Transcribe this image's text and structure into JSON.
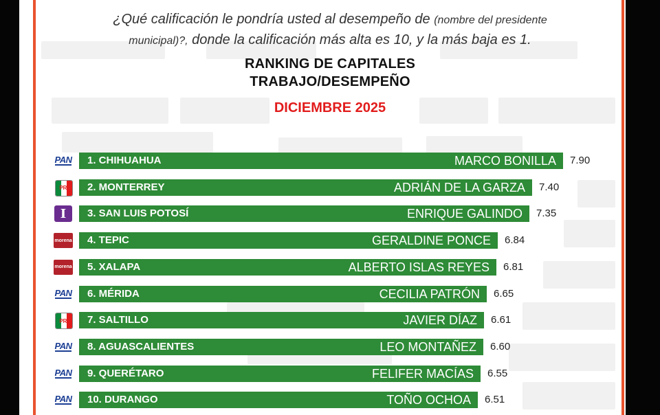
{
  "question": {
    "part1": "¿Qué calificación le pondría usted al desempeño de",
    "small1": "(nombre del presidente",
    "small2": "municipal)?,",
    "part2": "donde la calificación más alta es 10, y la más baja es 1."
  },
  "chart_data": {
    "type": "bar",
    "orientation": "horizontal",
    "title": "RANKING DE CAPITALES",
    "subtitle": "TRABAJO/DESEMPEÑO",
    "period": "DICIEMBRE 2025",
    "bar_color": "#2e8b37",
    "period_color": "#e21c1c",
    "xlim": [
      0,
      10
    ],
    "rows": [
      {
        "rank_city": "1. CHIHUAHUA",
        "mayor": "MARCO BONILLA",
        "value": 7.9,
        "value_label": "7.90",
        "party": "PAN"
      },
      {
        "rank_city": "2. MONTERREY",
        "mayor": "ADRIÁN DE LA GARZA",
        "value": 7.4,
        "value_label": "7.40",
        "party": "PRI"
      },
      {
        "rank_city": "3. SAN LUIS POTOSÍ",
        "mayor": "ENRIQUE GALINDO",
        "value": 7.35,
        "value_label": "7.35",
        "party": "independiente"
      },
      {
        "rank_city": "4. TEPIC",
        "mayor": "GERALDINE PONCE",
        "value": 6.84,
        "value_label": "6.84",
        "party": "morena"
      },
      {
        "rank_city": "5. XALAPA",
        "mayor": "ALBERTO ISLAS REYES",
        "value": 6.81,
        "value_label": "6.81",
        "party": "morena"
      },
      {
        "rank_city": "6. MÉRIDA",
        "mayor": "CECILIA PATRÓN",
        "value": 6.65,
        "value_label": "6.65",
        "party": "PAN"
      },
      {
        "rank_city": "7. SALTILLO",
        "mayor": "JAVIER DÍAZ",
        "value": 6.61,
        "value_label": "6.61",
        "party": "PRI"
      },
      {
        "rank_city": "8. AGUASCALIENTES",
        "mayor": "LEO MONTAÑEZ",
        "value": 6.6,
        "value_label": "6.60",
        "party": "PAN"
      },
      {
        "rank_city": "9. QUERÉTARO",
        "mayor": "FELIFER MACÍAS",
        "value": 6.55,
        "value_label": "6.55",
        "party": "PAN"
      },
      {
        "rank_city": "10. DURANGO",
        "mayor": "TOÑO OCHOA",
        "value": 6.51,
        "value_label": "6.51",
        "party": "PAN"
      }
    ]
  },
  "logos": {
    "PAN": "PAN",
    "PRI": "PRI",
    "independiente": "I",
    "morena": "morena"
  }
}
